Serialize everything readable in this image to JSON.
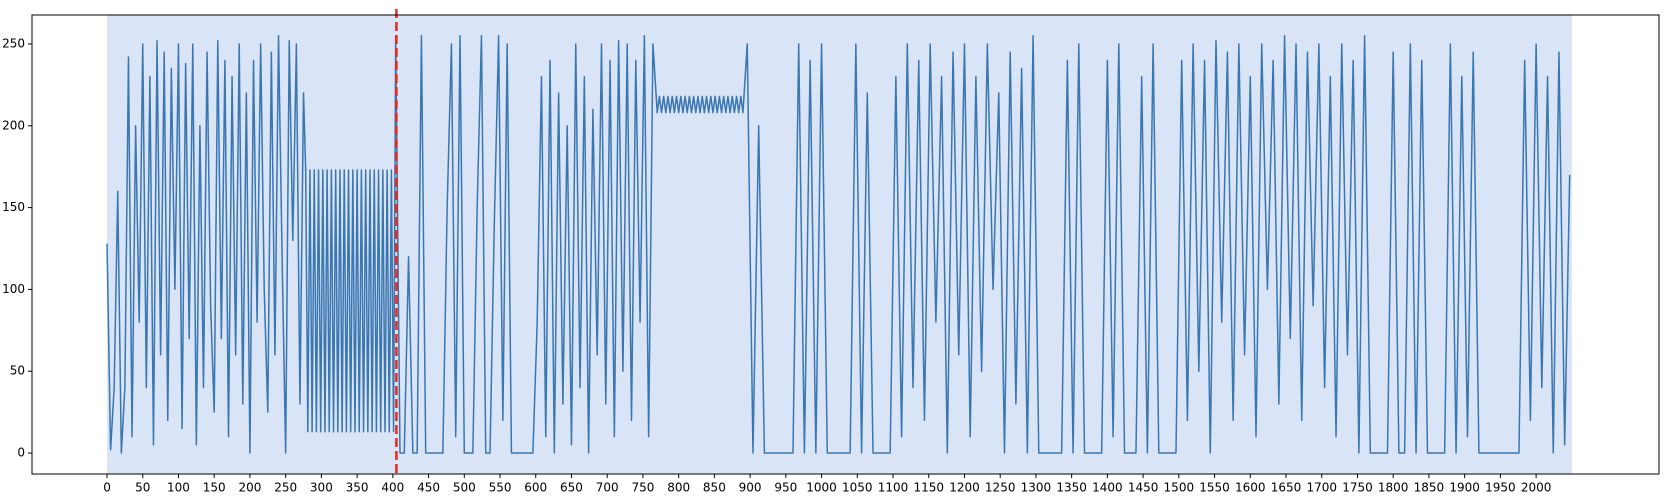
{
  "chart_data": {
    "type": "line",
    "x": [
      0,
      5,
      10,
      15,
      20,
      25,
      30,
      35,
      40,
      45,
      50,
      55,
      60,
      65,
      70,
      75,
      80,
      85,
      90,
      95,
      100,
      105,
      110,
      115,
      120,
      125,
      130,
      135,
      140,
      145,
      150,
      155,
      160,
      165,
      170,
      175,
      180,
      185,
      190,
      195,
      200,
      205,
      210,
      215,
      220,
      225,
      230,
      235,
      240,
      245,
      250,
      255,
      260,
      265,
      270,
      275,
      278,
      281,
      284,
      287,
      290,
      293,
      296,
      299,
      302,
      305,
      308,
      311,
      314,
      317,
      320,
      323,
      326,
      329,
      332,
      335,
      338,
      341,
      344,
      347,
      350,
      353,
      356,
      359,
      362,
      365,
      368,
      371,
      374,
      377,
      380,
      383,
      386,
      389,
      392,
      395,
      398,
      401,
      404,
      410,
      416,
      422,
      428,
      434,
      440,
      446,
      452,
      458,
      464,
      470,
      476,
      482,
      488,
      494,
      500,
      506,
      512,
      518,
      524,
      530,
      536,
      542,
      548,
      554,
      560,
      566,
      572,
      578,
      584,
      590,
      596,
      602,
      608,
      614,
      620,
      626,
      632,
      638,
      644,
      650,
      656,
      662,
      668,
      674,
      680,
      686,
      692,
      698,
      704,
      710,
      716,
      722,
      728,
      734,
      740,
      746,
      752,
      758,
      764,
      770,
      773,
      776,
      779,
      782,
      785,
      788,
      791,
      794,
      797,
      800,
      803,
      806,
      809,
      812,
      815,
      818,
      821,
      824,
      827,
      830,
      833,
      836,
      839,
      842,
      845,
      848,
      851,
      854,
      857,
      860,
      863,
      866,
      869,
      872,
      875,
      878,
      881,
      884,
      887,
      890,
      896,
      904,
      912,
      920,
      928,
      936,
      944,
      952,
      960,
      968,
      976,
      984,
      992,
      1000,
      1008,
      1016,
      1024,
      1032,
      1040,
      1048,
      1056,
      1064,
      1072,
      1080,
      1088,
      1096,
      1104,
      1112,
      1120,
      1128,
      1136,
      1144,
      1152,
      1160,
      1168,
      1176,
      1184,
      1192,
      1200,
      1208,
      1216,
      1224,
      1232,
      1240,
      1248,
      1256,
      1264,
      1272,
      1280,
      1288,
      1296,
      1304,
      1312,
      1320,
      1328,
      1336,
      1344,
      1352,
      1360,
      1368,
      1376,
      1384,
      1392,
      1400,
      1408,
      1416,
      1424,
      1432,
      1440,
      1448,
      1456,
      1464,
      1472,
      1480,
      1488,
      1496,
      1504,
      1512,
      1520,
      1528,
      1536,
      1544,
      1552,
      1560,
      1568,
      1576,
      1584,
      1592,
      1600,
      1608,
      1616,
      1624,
      1632,
      1640,
      1648,
      1656,
      1664,
      1672,
      1680,
      1688,
      1696,
      1704,
      1712,
      1720,
      1728,
      1736,
      1744,
      1752,
      1760,
      1768,
      1776,
      1784,
      1792,
      1800,
      1808,
      1816,
      1824,
      1832,
      1840,
      1848,
      1856,
      1864,
      1872,
      1880,
      1888,
      1896,
      1904,
      1912,
      1920,
      1928,
      1936,
      1944,
      1952,
      1960,
      1968,
      1976,
      1984,
      1992,
      2000,
      2008,
      2016,
      2024,
      2032,
      2040,
      2047
    ],
    "series": [
      {
        "color": "#3a76b0",
        "values": [
          128,
          2,
          40,
          160,
          0,
          40,
          242,
          10,
          200,
          80,
          250,
          40,
          230,
          5,
          252,
          60,
          245,
          20,
          235,
          100,
          250,
          15,
          238,
          70,
          250,
          5,
          200,
          40,
          245,
          90,
          25,
          252,
          70,
          240,
          10,
          230,
          60,
          250,
          30,
          220,
          0,
          240,
          80,
          250,
          100,
          25,
          245,
          60,
          255,
          120,
          0,
          252,
          130,
          250,
          30,
          220,
          173,
          13,
          173,
          13,
          173,
          13,
          173,
          13,
          173,
          13,
          173,
          13,
          173,
          13,
          173,
          13,
          173,
          13,
          173,
          13,
          173,
          13,
          173,
          13,
          173,
          13,
          173,
          13,
          173,
          13,
          173,
          13,
          173,
          13,
          173,
          13,
          173,
          13,
          173,
          13,
          173,
          13,
          255,
          0,
          0,
          120,
          0,
          0,
          255,
          0,
          0,
          0,
          0,
          0,
          150,
          250,
          10,
          255,
          0,
          0,
          0,
          150,
          255,
          0,
          0,
          140,
          255,
          20,
          250,
          0,
          0,
          0,
          0,
          0,
          0,
          80,
          230,
          10,
          240,
          0,
          220,
          30,
          200,
          5,
          250,
          40,
          230,
          0,
          210,
          60,
          250,
          30,
          240,
          10,
          252,
          50,
          250,
          20,
          240,
          80,
          255,
          10,
          250,
          208,
          218,
          208,
          218,
          208,
          218,
          208,
          218,
          208,
          218,
          208,
          218,
          208,
          218,
          208,
          218,
          208,
          218,
          208,
          218,
          208,
          218,
          208,
          218,
          208,
          218,
          208,
          218,
          208,
          218,
          208,
          218,
          208,
          218,
          208,
          218,
          208,
          218,
          208,
          218,
          208,
          250,
          0,
          200,
          0,
          0,
          0,
          0,
          0,
          0,
          250,
          0,
          240,
          0,
          250,
          0,
          0,
          0,
          0,
          0,
          250,
          0,
          220,
          0,
          0,
          0,
          0,
          230,
          10,
          250,
          40,
          240,
          20,
          250,
          80,
          230,
          0,
          245,
          60,
          250,
          10,
          230,
          50,
          250,
          100,
          220,
          0,
          245,
          30,
          235,
          0,
          255,
          0,
          0,
          0,
          0,
          0,
          240,
          0,
          250,
          0,
          0,
          0,
          0,
          240,
          10,
          250,
          0,
          0,
          0,
          230,
          0,
          250,
          0,
          0,
          0,
          0,
          240,
          20,
          250,
          50,
          240,
          0,
          252,
          80,
          245,
          20,
          250,
          60,
          230,
          10,
          250,
          100,
          240,
          30,
          255,
          70,
          250,
          20,
          245,
          90,
          250,
          40,
          230,
          10,
          250,
          60,
          240,
          0,
          255,
          0,
          0,
          0,
          0,
          245,
          0,
          0,
          250,
          0,
          240,
          0,
          0,
          0,
          0,
          250,
          0,
          230,
          10,
          245,
          0,
          0,
          0,
          0,
          0,
          0,
          0,
          0,
          240,
          20,
          250,
          40,
          230,
          0,
          245,
          5,
          170
        ]
      }
    ],
    "xlim": [
      -105,
      2172
    ],
    "ylim": [
      -12.8,
      267.7
    ],
    "xticks": [
      0,
      50,
      100,
      150,
      200,
      250,
      300,
      350,
      400,
      450,
      500,
      550,
      600,
      650,
      700,
      750,
      800,
      850,
      900,
      950,
      1000,
      1050,
      1100,
      1150,
      1200,
      1250,
      1300,
      1350,
      1400,
      1450,
      1500,
      1550,
      1600,
      1650,
      1700,
      1750,
      1800,
      1850,
      1900,
      1950,
      2000
    ],
    "yticks": [
      0,
      50,
      100,
      150,
      200,
      250
    ],
    "shaded_region": {
      "x": [
        0,
        2050
      ],
      "color": "#dae4f7"
    },
    "vline": {
      "x": 405,
      "color": "#e8291c"
    }
  }
}
